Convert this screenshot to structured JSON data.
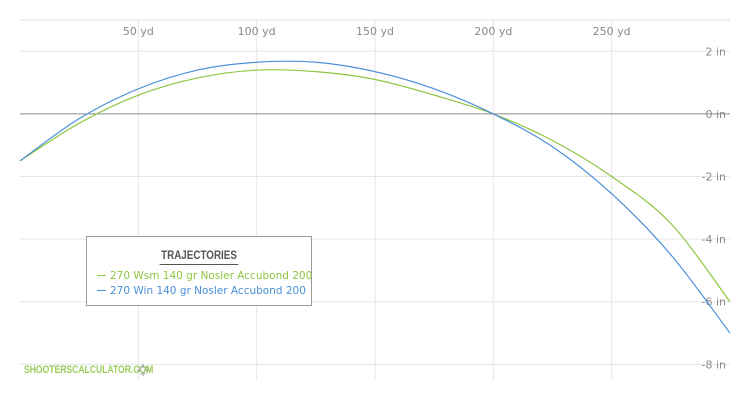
{
  "chart_data": {
    "type": "line",
    "title": "",
    "x_ticks": [
      "50 yd",
      "100 yd",
      "150 yd",
      "200 yd",
      "250 yd"
    ],
    "x_tick_values": [
      50,
      100,
      150,
      200,
      250
    ],
    "y_ticks": [
      "2 in",
      "0 in",
      "-2 in",
      "-4 in",
      "-6 in",
      "-8 in"
    ],
    "y_tick_values": [
      2,
      0,
      -2,
      -4,
      -6,
      -8
    ],
    "xlim": [
      0,
      300
    ],
    "ylim": [
      -8.5,
      3.0
    ],
    "grid": true,
    "legend_position": "bottom-left",
    "x": [
      0,
      25,
      50,
      75,
      100,
      125,
      150,
      175,
      200,
      225,
      250,
      275,
      300
    ],
    "series": [
      {
        "name": "270 Wsm 140 gr Nosler Accubond 200",
        "color": "#8dc63f",
        "values": [
          -1.5,
          -0.3,
          0.6,
          1.15,
          1.4,
          1.35,
          1.1,
          0.6,
          0.0,
          -0.85,
          -2.0,
          -3.5,
          -6.0
        ]
      },
      {
        "name": "270 Win 140 gr Nosler Accubond 200",
        "color": "#4a90d9",
        "values": [
          -1.5,
          -0.15,
          0.8,
          1.4,
          1.65,
          1.65,
          1.35,
          0.8,
          0.0,
          -1.05,
          -2.55,
          -4.5,
          -7.0
        ]
      }
    ]
  },
  "legend": {
    "title": "TRAJECTORIES"
  },
  "watermark": {
    "text": "SHOOTERSCALCULATOR.COM",
    "icon": "crosshair-icon"
  }
}
